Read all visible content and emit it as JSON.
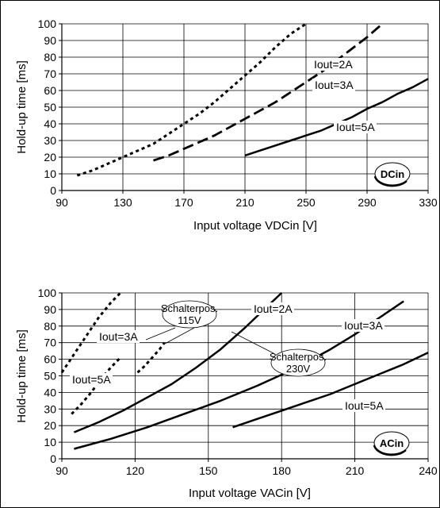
{
  "chart_data": [
    {
      "type": "line",
      "xlabel": "Input voltage VDCin [V]",
      "ylabel": "Hold-up time [ms]",
      "xlim": [
        90,
        330
      ],
      "ylim": [
        0,
        100
      ],
      "xticks": [
        90,
        130,
        170,
        210,
        250,
        290,
        330
      ],
      "yticks": [
        0,
        10,
        20,
        30,
        40,
        50,
        60,
        70,
        80,
        90,
        100
      ],
      "grid": true,
      "badge": "DCin",
      "series": [
        {
          "name": "Iout=2A",
          "style": "dotted",
          "x": [
            100,
            110,
            120,
            130,
            140,
            150,
            160,
            170,
            180,
            190,
            200,
            210,
            220,
            230,
            240,
            250
          ],
          "y": [
            9,
            12,
            16,
            20,
            24,
            28,
            34,
            40,
            46,
            53,
            61,
            69,
            77,
            86,
            94,
            100
          ]
        },
        {
          "name": "Iout=3A",
          "style": "dashed",
          "x": [
            150,
            160,
            170,
            180,
            190,
            200,
            210,
            220,
            230,
            240,
            250,
            260,
            270,
            280,
            290,
            300
          ],
          "y": [
            18,
            21,
            25,
            29,
            33,
            38,
            43,
            48,
            53,
            59,
            65,
            71,
            78,
            85,
            92,
            100
          ]
        },
        {
          "name": "Iout=5A",
          "style": "solid",
          "x": [
            210,
            220,
            230,
            240,
            250,
            260,
            270,
            280,
            290,
            300,
            310,
            320,
            330
          ],
          "y": [
            21,
            24,
            27,
            30,
            33,
            36,
            40,
            44,
            49,
            53,
            58,
            62,
            67
          ]
        }
      ],
      "annotations": [
        "Iout=2A",
        "Iout=3A",
        "Iout=5A"
      ]
    },
    {
      "type": "line",
      "xlabel": "Input voltage VACin [V]",
      "ylabel": "Hold-up time [ms]",
      "xlim": [
        90,
        240
      ],
      "ylim": [
        0,
        100
      ],
      "xticks": [
        90,
        120,
        150,
        180,
        210,
        240
      ],
      "yticks": [
        0,
        10,
        20,
        30,
        40,
        50,
        60,
        70,
        80,
        90,
        100
      ],
      "grid": true,
      "badge": "ACin",
      "series": [
        {
          "name": "Iout=3A",
          "style": "dotted",
          "x": [
            90,
            95,
            100,
            105,
            110,
            114
          ],
          "y": [
            52,
            63,
            74,
            85,
            94,
            100
          ]
        },
        {
          "name": "Iout=5A",
          "style": "dotted",
          "x": [
            94,
            98,
            102,
            106,
            110,
            114
          ],
          "y": [
            27,
            33,
            40,
            48,
            55,
            61
          ]
        },
        {
          "name": "Iout=2A",
          "style": "dotted",
          "x": [
            121,
            124,
            127,
            130,
            132
          ],
          "y": [
            52,
            56,
            61,
            66,
            70
          ]
        },
        {
          "name": "Iout=2A",
          "style": "solid",
          "x": [
            95,
            105,
            115,
            125,
            135,
            145,
            155,
            165,
            175,
            180
          ],
          "y": [
            16,
            22,
            29,
            37,
            45,
            55,
            66,
            79,
            93,
            100
          ]
        },
        {
          "name": "Iout=3A",
          "style": "solid",
          "x": [
            95,
            110,
            125,
            140,
            155,
            170,
            185,
            200,
            210,
            220,
            230
          ],
          "y": [
            6,
            12,
            19,
            27,
            35,
            44,
            54,
            66,
            75,
            85,
            95
          ]
        },
        {
          "name": "Iout=5A",
          "style": "solid",
          "x": [
            160,
            170,
            180,
            190,
            200,
            210,
            220,
            230,
            240
          ],
          "y": [
            19,
            24,
            29,
            34,
            39,
            45,
            51,
            57,
            64
          ]
        }
      ],
      "annotations": [
        "Schalterpos.",
        "115V",
        "Iout=2A",
        "Iout=3A",
        "Iout=3A",
        "Iout=5A",
        "Schalterpos.",
        "230V",
        "Iout=5A"
      ]
    }
  ]
}
